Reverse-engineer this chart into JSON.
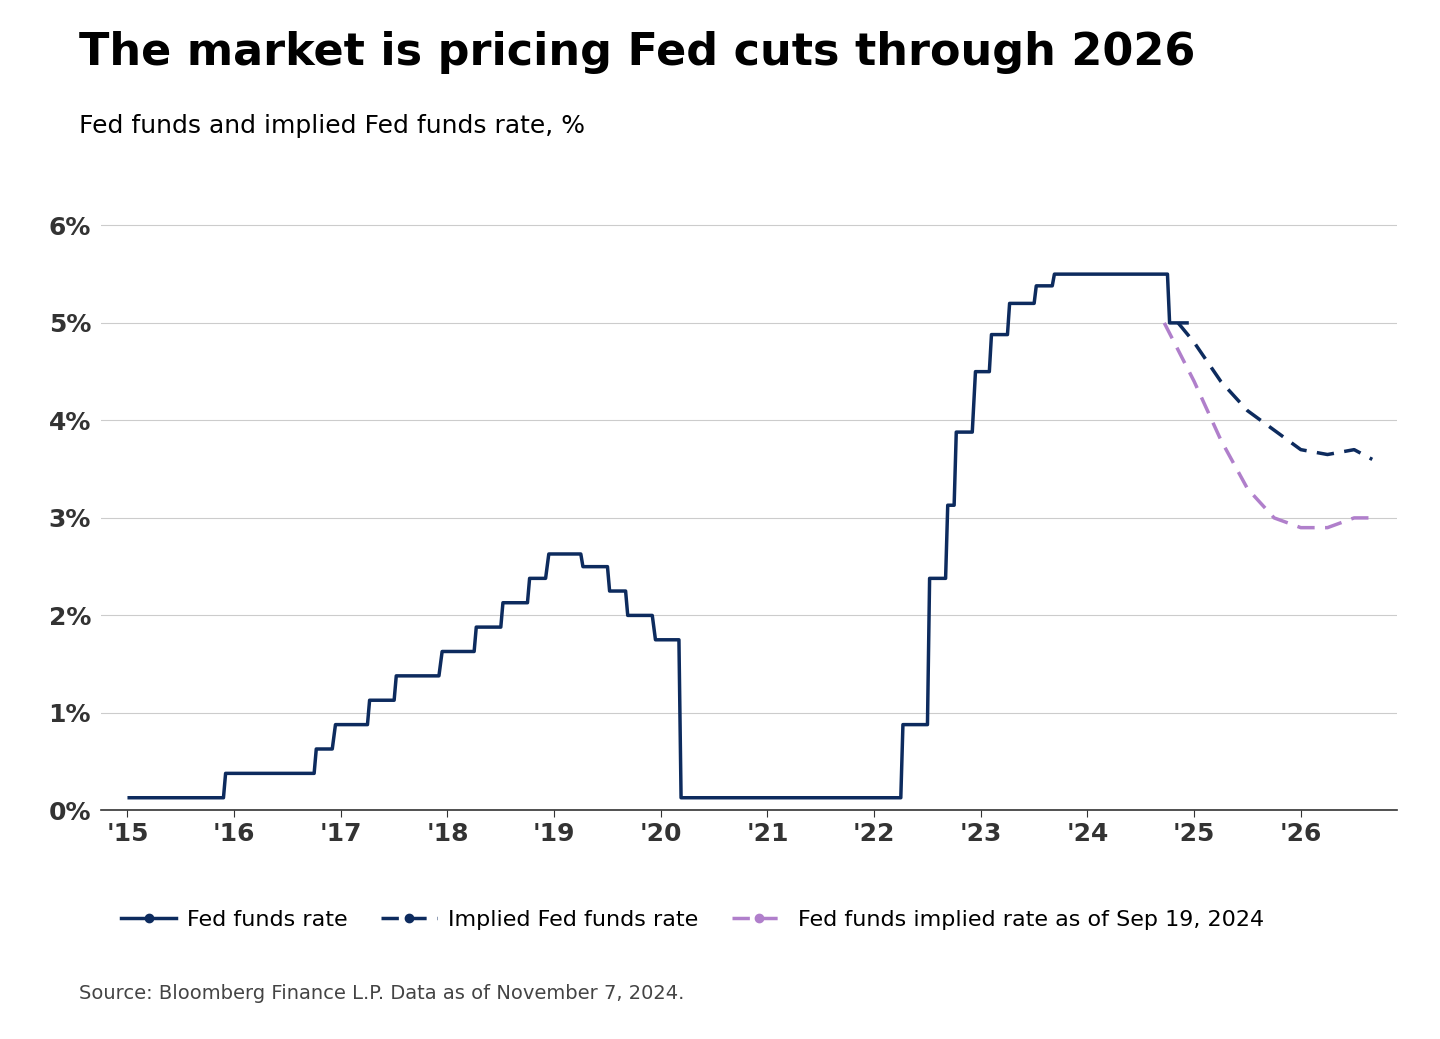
{
  "title": "The market is pricing Fed cuts through 2026",
  "subtitle": "Fed funds and implied Fed funds rate, %",
  "source": "Source: Bloomberg Finance L.P. Data as of November 7, 2024.",
  "background_color": "#ffffff",
  "title_color": "#000000",
  "subtitle_color": "#000000",
  "axis_color": "#333333",
  "grid_color": "#cccccc",
  "fed_funds_color": "#0d2b5e",
  "implied_color": "#0d2b5e",
  "sep19_color": "#b07fcb",
  "ylim": [
    0,
    0.065
  ],
  "yticks": [
    0,
    0.01,
    0.02,
    0.03,
    0.04,
    0.05,
    0.06
  ],
  "ytick_labels": [
    "0%",
    "1%",
    "2%",
    "3%",
    "4%",
    "5%",
    "6%"
  ],
  "fed_funds_rate": {
    "x": [
      2015.0,
      2015.25,
      2015.9,
      2015.92,
      2016.75,
      2016.77,
      2016.92,
      2016.95,
      2017.25,
      2017.27,
      2017.5,
      2017.52,
      2017.92,
      2017.95,
      2018.25,
      2018.27,
      2018.5,
      2018.52,
      2018.75,
      2018.77,
      2018.92,
      2018.95,
      2019.25,
      2019.27,
      2019.5,
      2019.52,
      2019.67,
      2019.69,
      2019.92,
      2019.95,
      2020.17,
      2020.19,
      2022.25,
      2022.27,
      2022.5,
      2022.52,
      2022.67,
      2022.69,
      2022.75,
      2022.77,
      2022.92,
      2022.95,
      2023.08,
      2023.1,
      2023.25,
      2023.27,
      2023.5,
      2023.52,
      2023.67,
      2023.69,
      2024.0,
      2024.5,
      2024.52,
      2024.75,
      2024.77,
      2024.92,
      2024.95
    ],
    "y": [
      0.0013,
      0.0013,
      0.0013,
      0.0038,
      0.0038,
      0.0063,
      0.0063,
      0.0088,
      0.0088,
      0.0113,
      0.0113,
      0.0138,
      0.0138,
      0.0163,
      0.0163,
      0.0188,
      0.0188,
      0.0213,
      0.0213,
      0.0238,
      0.0238,
      0.0263,
      0.0263,
      0.025,
      0.025,
      0.0225,
      0.0225,
      0.02,
      0.02,
      0.0175,
      0.0175,
      0.0013,
      0.0013,
      0.0088,
      0.0088,
      0.0238,
      0.0238,
      0.0313,
      0.0313,
      0.0388,
      0.0388,
      0.045,
      0.045,
      0.0488,
      0.0488,
      0.052,
      0.052,
      0.0538,
      0.0538,
      0.055,
      0.055,
      0.055,
      0.055,
      0.055,
      0.05,
      0.05,
      0.05
    ]
  },
  "implied_fed_funds": {
    "x": [
      2024.85,
      2025.0,
      2025.25,
      2025.5,
      2025.75,
      2026.0,
      2026.25,
      2026.5,
      2026.67
    ],
    "y": [
      0.05,
      0.048,
      0.044,
      0.041,
      0.039,
      0.037,
      0.0365,
      0.037,
      0.036
    ]
  },
  "sep19_implied": {
    "x": [
      2024.72,
      2025.0,
      2025.25,
      2025.5,
      2025.75,
      2026.0,
      2026.25,
      2026.5,
      2026.67
    ],
    "y": [
      0.05,
      0.044,
      0.038,
      0.033,
      0.03,
      0.029,
      0.029,
      0.03,
      0.03
    ]
  },
  "legend_labels": [
    "Fed funds rate",
    "Implied Fed funds rate",
    "Fed funds implied rate as of Sep 19, 2024"
  ],
  "xlim": [
    2014.75,
    2026.9
  ],
  "xticks": [
    2015,
    2016,
    2017,
    2018,
    2019,
    2020,
    2021,
    2022,
    2023,
    2024,
    2025,
    2026
  ],
  "xtick_labels": [
    "'15",
    "'16",
    "'17",
    "'18",
    "'19",
    "'20",
    "'21",
    "'22",
    "'23",
    "'24",
    "'25",
    "'26"
  ]
}
